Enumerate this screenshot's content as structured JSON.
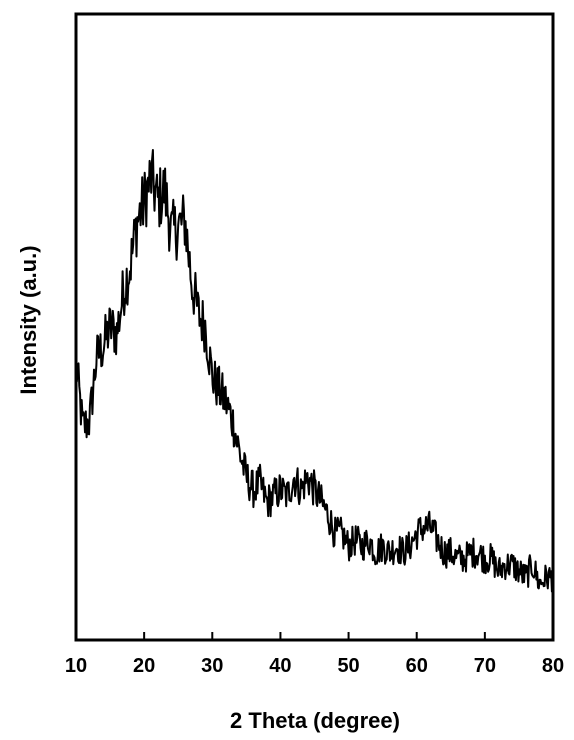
{
  "chart_data": {
    "type": "line",
    "title": "",
    "xlabel": "2 Theta (degree)",
    "ylabel": "Intensity (a.u.)",
    "xlim": [
      10,
      80
    ],
    "ylim": [
      0,
      1
    ],
    "xticks": [
      "10",
      "20",
      "30",
      "40",
      "50",
      "60",
      "70",
      "80"
    ],
    "yticks_visible": false,
    "grid": false,
    "legend": "none",
    "line_color": "#000000",
    "series": [
      {
        "x": [
          10,
          11,
          12,
          13,
          14,
          15,
          16,
          17,
          18,
          19,
          20,
          21,
          22,
          23,
          24,
          25,
          26,
          27,
          28,
          29,
          30,
          31,
          32,
          33,
          34,
          35,
          36,
          37,
          38,
          39,
          40,
          41,
          42,
          43,
          44,
          45,
          46,
          47,
          48,
          49,
          50,
          51,
          52,
          53,
          54,
          55,
          56,
          57,
          58,
          59,
          60,
          61,
          62,
          63,
          64,
          65,
          66,
          67,
          68,
          69,
          70,
          71,
          72,
          73,
          74,
          75,
          76,
          77,
          78,
          79,
          80
        ],
        "y": [
          0.44,
          0.34,
          0.35,
          0.45,
          0.47,
          0.5,
          0.49,
          0.56,
          0.6,
          0.67,
          0.7,
          0.74,
          0.7,
          0.72,
          0.65,
          0.66,
          0.67,
          0.57,
          0.52,
          0.5,
          0.42,
          0.4,
          0.38,
          0.35,
          0.3,
          0.26,
          0.24,
          0.25,
          0.22,
          0.23,
          0.24,
          0.23,
          0.26,
          0.24,
          0.26,
          0.24,
          0.22,
          0.2,
          0.17,
          0.17,
          0.15,
          0.16,
          0.15,
          0.16,
          0.14,
          0.15,
          0.14,
          0.15,
          0.14,
          0.15,
          0.17,
          0.18,
          0.18,
          0.16,
          0.14,
          0.14,
          0.13,
          0.13,
          0.14,
          0.14,
          0.13,
          0.13,
          0.11,
          0.12,
          0.12,
          0.11,
          0.1,
          0.12,
          0.09,
          0.1,
          0.1
        ]
      }
    ]
  }
}
